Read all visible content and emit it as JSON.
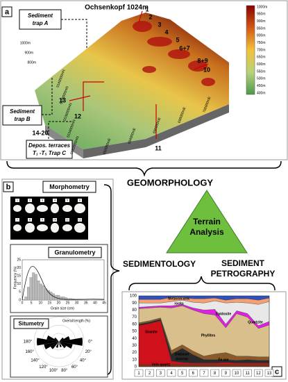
{
  "panel_a": {
    "label": "a",
    "peak": "Ochsenkopf 1024m",
    "trap_a": [
      "Sediment",
      "trap A"
    ],
    "trap_b": [
      "Sediment",
      "trap B"
    ],
    "trap_c": [
      "Depos. terraces",
      "T₁ -T₅ Trap C"
    ],
    "sites": [
      1,
      2,
      3,
      4,
      5,
      "6+7",
      "8+9",
      10,
      11,
      12,
      13,
      "14-20"
    ],
    "elevation_ticks": [
      "1000m",
      "900m",
      "800m"
    ],
    "northing": [
      "5532000mN",
      "5534000mN",
      "5536000mN",
      "5538000mN",
      "5540000mN"
    ],
    "easting": [
      "692000mE",
      "694000mE",
      "696000mE",
      "698000mE",
      "700000mE"
    ],
    "legend": [
      "1000m",
      "950m",
      "900m",
      "850m",
      "800m",
      "750m",
      "700m",
      "650m",
      "600m",
      "550m",
      "500m",
      "450m",
      "400m"
    ]
  },
  "geomorphology": "GEOMORPHOLOGY",
  "terrain_analysis": [
    "Terrain",
    "Analysis"
  ],
  "sedimentology": "SEDIMENTOLOGY",
  "sediment_petrography": [
    "SEDIMENT",
    "PETROGRAPHY"
  ],
  "panel_b": {
    "label": "b",
    "morphometry": "Morphometry",
    "grain_labels": [
      1,
      2,
      3,
      4,
      5,
      6,
      7,
      8,
      9,
      10,
      11,
      12
    ],
    "granulometry": "Granulometry",
    "granulometry_ylabel": "Frequency (%)",
    "granulometry_xlabel": "Grain size (cm)",
    "granulometry_yticks": [
      0,
      5,
      10,
      15,
      20,
      25
    ],
    "granulometry_xticks": [
      0,
      5,
      10,
      15,
      20,
      25,
      30,
      35,
      40,
      45
    ],
    "situmetry": "Situmetry",
    "situmetry_legend": "Overall length (%)",
    "situmetry_angles": [
      "0°",
      "20°",
      "40°",
      "60°",
      "80°",
      "100°",
      "120°",
      "140°",
      "160°",
      "180°"
    ]
  },
  "panel_c": {
    "label": "c",
    "rocks": [
      "Metavolcanic",
      "rocks",
      "Epidosite",
      "Quartzite",
      "Phyllites",
      "Granite",
      "Diabase/",
      "dolerite",
      "Fe ore",
      "Vein quartz"
    ],
    "yticks": [
      0,
      10,
      20,
      30,
      40,
      50,
      60,
      70,
      80,
      90,
      100
    ],
    "xticks": [
      1,
      2,
      3,
      4,
      5,
      6,
      7,
      8,
      9,
      10,
      11,
      12,
      13
    ]
  }
}
